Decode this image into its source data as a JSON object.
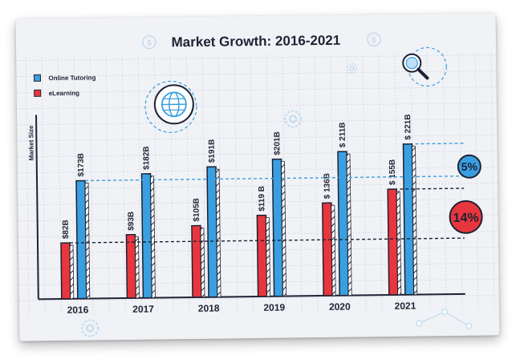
{
  "chart_data": {
    "type": "bar",
    "title": "Market Growth: 2016-2021",
    "xlabel": "",
    "ylabel": "Market Size",
    "categories": [
      "2016",
      "2017",
      "2018",
      "2019",
      "2020",
      "2021"
    ],
    "series": [
      {
        "name": "Online Tutoring",
        "color": "#3a9fe0",
        "values": [
          173,
          182,
          191,
          201,
          211,
          221
        ],
        "labels": [
          "$173B",
          "$182B",
          "$191B",
          "$201B",
          "$ 211B",
          "$ 221B"
        ]
      },
      {
        "name": "eLearning",
        "color": "#e8363e",
        "values": [
          82,
          93,
          105,
          119,
          136,
          155
        ],
        "labels": [
          "$82B",
          "$93B",
          "$105B",
          "$119 B",
          "$ 136B",
          "$ 155B"
        ]
      }
    ],
    "ylim": [
      0,
      221
    ],
    "grid": true,
    "legend": "top-left",
    "annotations": [
      {
        "text": "5%",
        "color": "#3a9fe0"
      },
      {
        "text": "14%",
        "color": "#e8363e"
      }
    ]
  },
  "decor": {
    "icons": [
      "dollar-icon",
      "dollar-icon",
      "globe-icon",
      "gear-icon",
      "gear-icon",
      "magnifier-icon",
      "gear-icon",
      "network-icon"
    ]
  }
}
